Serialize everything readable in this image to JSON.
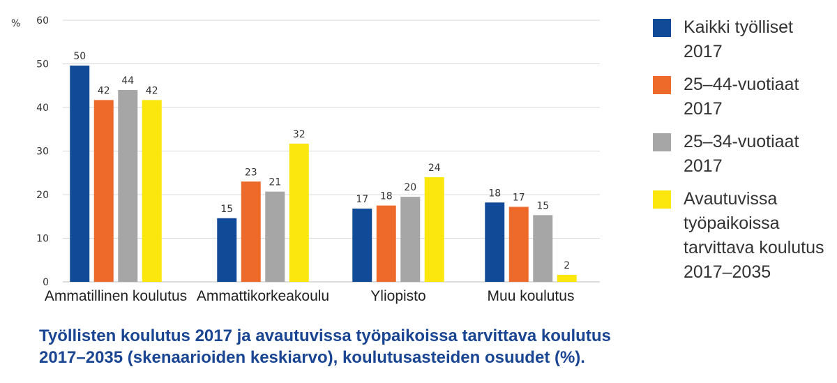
{
  "chart_data": {
    "type": "bar",
    "unit_label": "%",
    "ylim": [
      0,
      60
    ],
    "yticks": [
      0,
      10,
      20,
      30,
      40,
      50,
      60
    ],
    "grid": true,
    "categories": [
      "Ammatillinen koulutus",
      "Ammattikorkeakoulu",
      "Yliopisto",
      "Muu koulutus"
    ],
    "series": [
      {
        "name": "Kaikki työlliset 2017",
        "color": "#114a97",
        "values": [
          49.6,
          14.6,
          16.8,
          18.2
        ],
        "labels": [
          "50",
          "15",
          "17",
          "18"
        ]
      },
      {
        "name": "25–44-vuotiaat 2017",
        "color": "#ee6a2a",
        "values": [
          41.7,
          23.0,
          17.5,
          17.2
        ],
        "labels": [
          "42",
          "23",
          "18",
          "17"
        ]
      },
      {
        "name": "25–34-vuotiaat 2017",
        "color": "#a6a6a6",
        "values": [
          44.0,
          20.7,
          19.5,
          15.3
        ],
        "labels": [
          "44",
          "21",
          "20",
          "15"
        ]
      },
      {
        "name": "Avautuvissa\ntyöpaikoissa\ntarvittava koulutus\n2017–2035",
        "color": "#fbe70d",
        "values": [
          41.7,
          31.7,
          24.0,
          1.6
        ],
        "labels": [
          "42",
          "32",
          "24",
          "2"
        ]
      }
    ],
    "legend_position": "right"
  },
  "caption": {
    "line1": "Työllisten koulutus 2017 ja avautuvissa työpaikoissa tarvittava koulutus",
    "line2": "2017–2035 (skenaarioiden keskiarvo), koulutusasteiden osuudet (%)."
  }
}
